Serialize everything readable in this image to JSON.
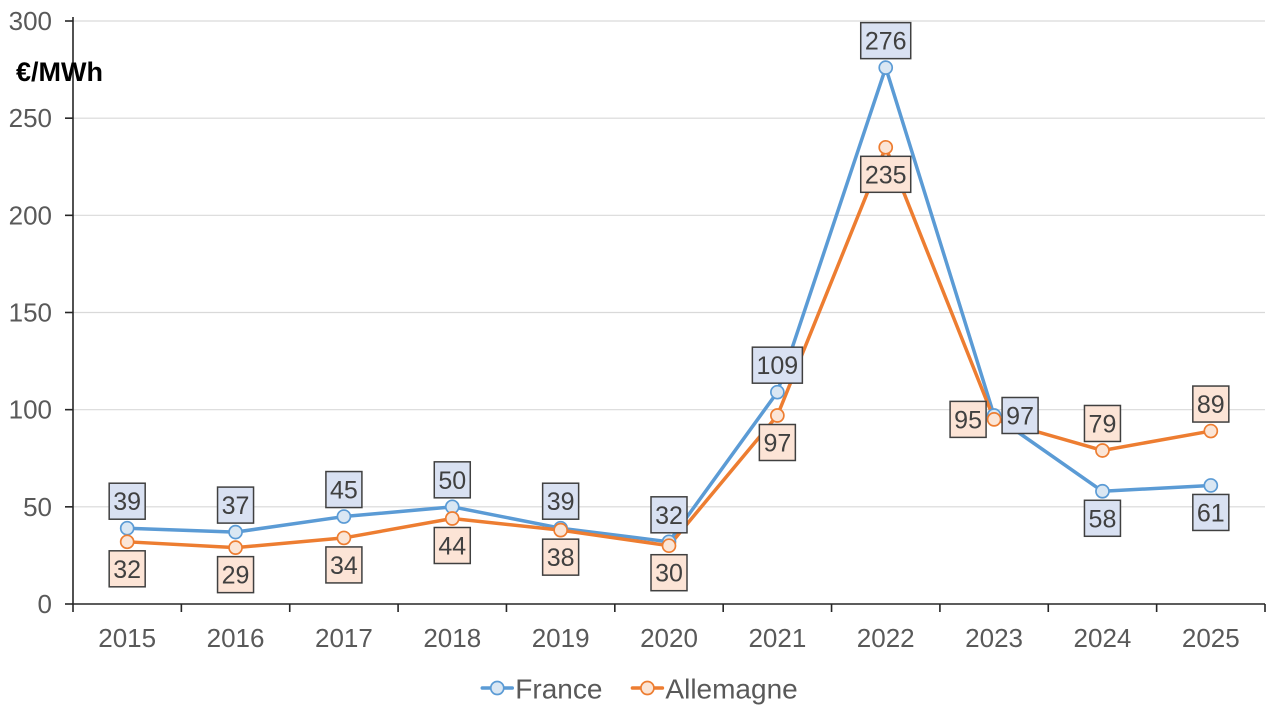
{
  "chart_data": {
    "type": "line",
    "title": "",
    "ylabel": "€/MWh",
    "xlabel": "",
    "categories": [
      "2015",
      "2016",
      "2017",
      "2018",
      "2019",
      "2020",
      "2021",
      "2022",
      "2023",
      "2024",
      "2025"
    ],
    "series": [
      {
        "name": "France",
        "values": [
          39,
          37,
          45,
          50,
          39,
          32,
          109,
          276,
          97,
          58,
          61
        ],
        "line_color": "#5B9BD5",
        "marker_fill": "#DAE7F3",
        "label_fill": "#D9E1F2",
        "label_placements": [
          "above",
          "above",
          "above",
          "above",
          "above",
          "above",
          "above",
          "above",
          "right",
          "below",
          "below"
        ]
      },
      {
        "name": "Allemagne",
        "values": [
          32,
          29,
          34,
          44,
          38,
          30,
          97,
          235,
          95,
          79,
          89
        ],
        "line_color": "#ED7D31",
        "marker_fill": "#FBE5D6",
        "label_fill": "#FCE4D6",
        "label_placements": [
          "below",
          "below",
          "below",
          "below",
          "below",
          "below",
          "below",
          "below",
          "left",
          "above",
          "above"
        ]
      }
    ],
    "ylim": [
      0,
      300
    ],
    "yticks": [
      0,
      50,
      100,
      150,
      200,
      250,
      300
    ],
    "grid": true,
    "legend_position": "bottom",
    "colors": {
      "axis": "#262626",
      "gridline": "#D9D9D9",
      "tick_label": "#595959",
      "axis_title": "#000000",
      "legend_text": "#595959",
      "data_label_text": "#404040",
      "data_label_border": "#404040"
    }
  }
}
